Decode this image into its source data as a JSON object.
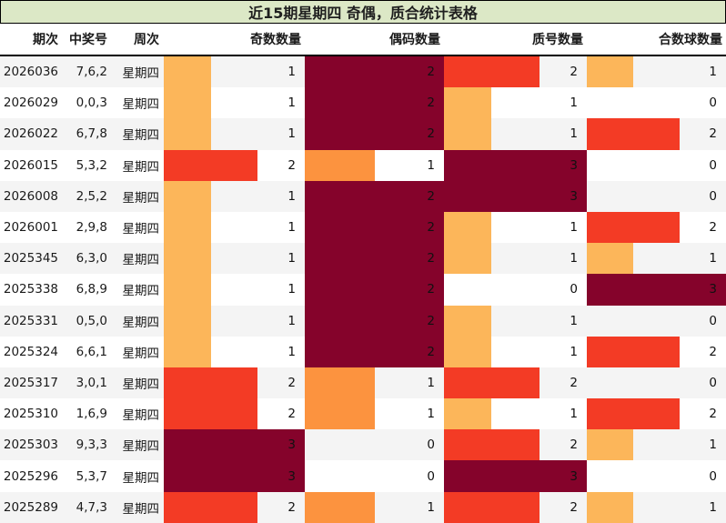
{
  "title": "近15期星期四 奇偶，质合统计表格",
  "chart_data": {
    "type": "table",
    "title": "近15期星期四 奇偶，质合统计表格",
    "columns": [
      "期次",
      "中奖号",
      "周次",
      "奇数数量",
      "偶码数量",
      "质号数量",
      "合数球数量"
    ],
    "bar_columns": [
      {
        "key": "odd",
        "max": 3
      },
      {
        "key": "even",
        "max": 2
      },
      {
        "key": "prime",
        "max": 3
      },
      {
        "key": "composite",
        "max": 3
      }
    ],
    "value_range": [
      0,
      3
    ],
    "rows": [
      {
        "period": "2026036",
        "winning_number": "7,6,2",
        "week": "星期四",
        "odd": 1,
        "even": 2,
        "prime": 2,
        "composite": 1
      },
      {
        "period": "2026029",
        "winning_number": "0,0,3",
        "week": "星期四",
        "odd": 1,
        "even": 2,
        "prime": 1,
        "composite": 0
      },
      {
        "period": "2026022",
        "winning_number": "6,7,8",
        "week": "星期四",
        "odd": 1,
        "even": 2,
        "prime": 1,
        "composite": 2
      },
      {
        "period": "2026015",
        "winning_number": "5,3,2",
        "week": "星期四",
        "odd": 2,
        "even": 1,
        "prime": 3,
        "composite": 0
      },
      {
        "period": "2026008",
        "winning_number": "2,5,2",
        "week": "星期四",
        "odd": 1,
        "even": 2,
        "prime": 3,
        "composite": 0
      },
      {
        "period": "2026001",
        "winning_number": "2,9,8",
        "week": "星期四",
        "odd": 1,
        "even": 2,
        "prime": 1,
        "composite": 2
      },
      {
        "period": "2025345",
        "winning_number": "6,3,0",
        "week": "星期四",
        "odd": 1,
        "even": 2,
        "prime": 1,
        "composite": 1
      },
      {
        "period": "2025338",
        "winning_number": "6,8,9",
        "week": "星期四",
        "odd": 1,
        "even": 2,
        "prime": 0,
        "composite": 3
      },
      {
        "period": "2025331",
        "winning_number": "0,5,0",
        "week": "星期四",
        "odd": 1,
        "even": 2,
        "prime": 1,
        "composite": 0
      },
      {
        "period": "2025324",
        "winning_number": "6,6,1",
        "week": "星期四",
        "odd": 1,
        "even": 2,
        "prime": 1,
        "composite": 2
      },
      {
        "period": "2025317",
        "winning_number": "3,0,1",
        "week": "星期四",
        "odd": 2,
        "even": 1,
        "prime": 2,
        "composite": 0
      },
      {
        "period": "2025310",
        "winning_number": "1,6,9",
        "week": "星期四",
        "odd": 2,
        "even": 1,
        "prime": 1,
        "composite": 2
      },
      {
        "period": "2025303",
        "winning_number": "9,3,3",
        "week": "星期四",
        "odd": 3,
        "even": 0,
        "prime": 2,
        "composite": 1
      },
      {
        "period": "2025296",
        "winning_number": "5,3,7",
        "week": "星期四",
        "odd": 3,
        "even": 0,
        "prime": 3,
        "composite": 0
      },
      {
        "period": "2025289",
        "winning_number": "4,7,3",
        "week": "星期四",
        "odd": 2,
        "even": 1,
        "prime": 2,
        "composite": 1
      }
    ]
  },
  "colors": {
    "title_bg": "#DCE8C6",
    "border": "#000000",
    "row_alt_bg": "#F4F4F4",
    "row_bg": "#FFFFFF",
    "text": "#1A1A1A",
    "bar_third": "#FCB65A",
    "bar_half": "#FC933F",
    "bar_two_thirds": "#F33B25",
    "bar_full": "#85032B"
  }
}
